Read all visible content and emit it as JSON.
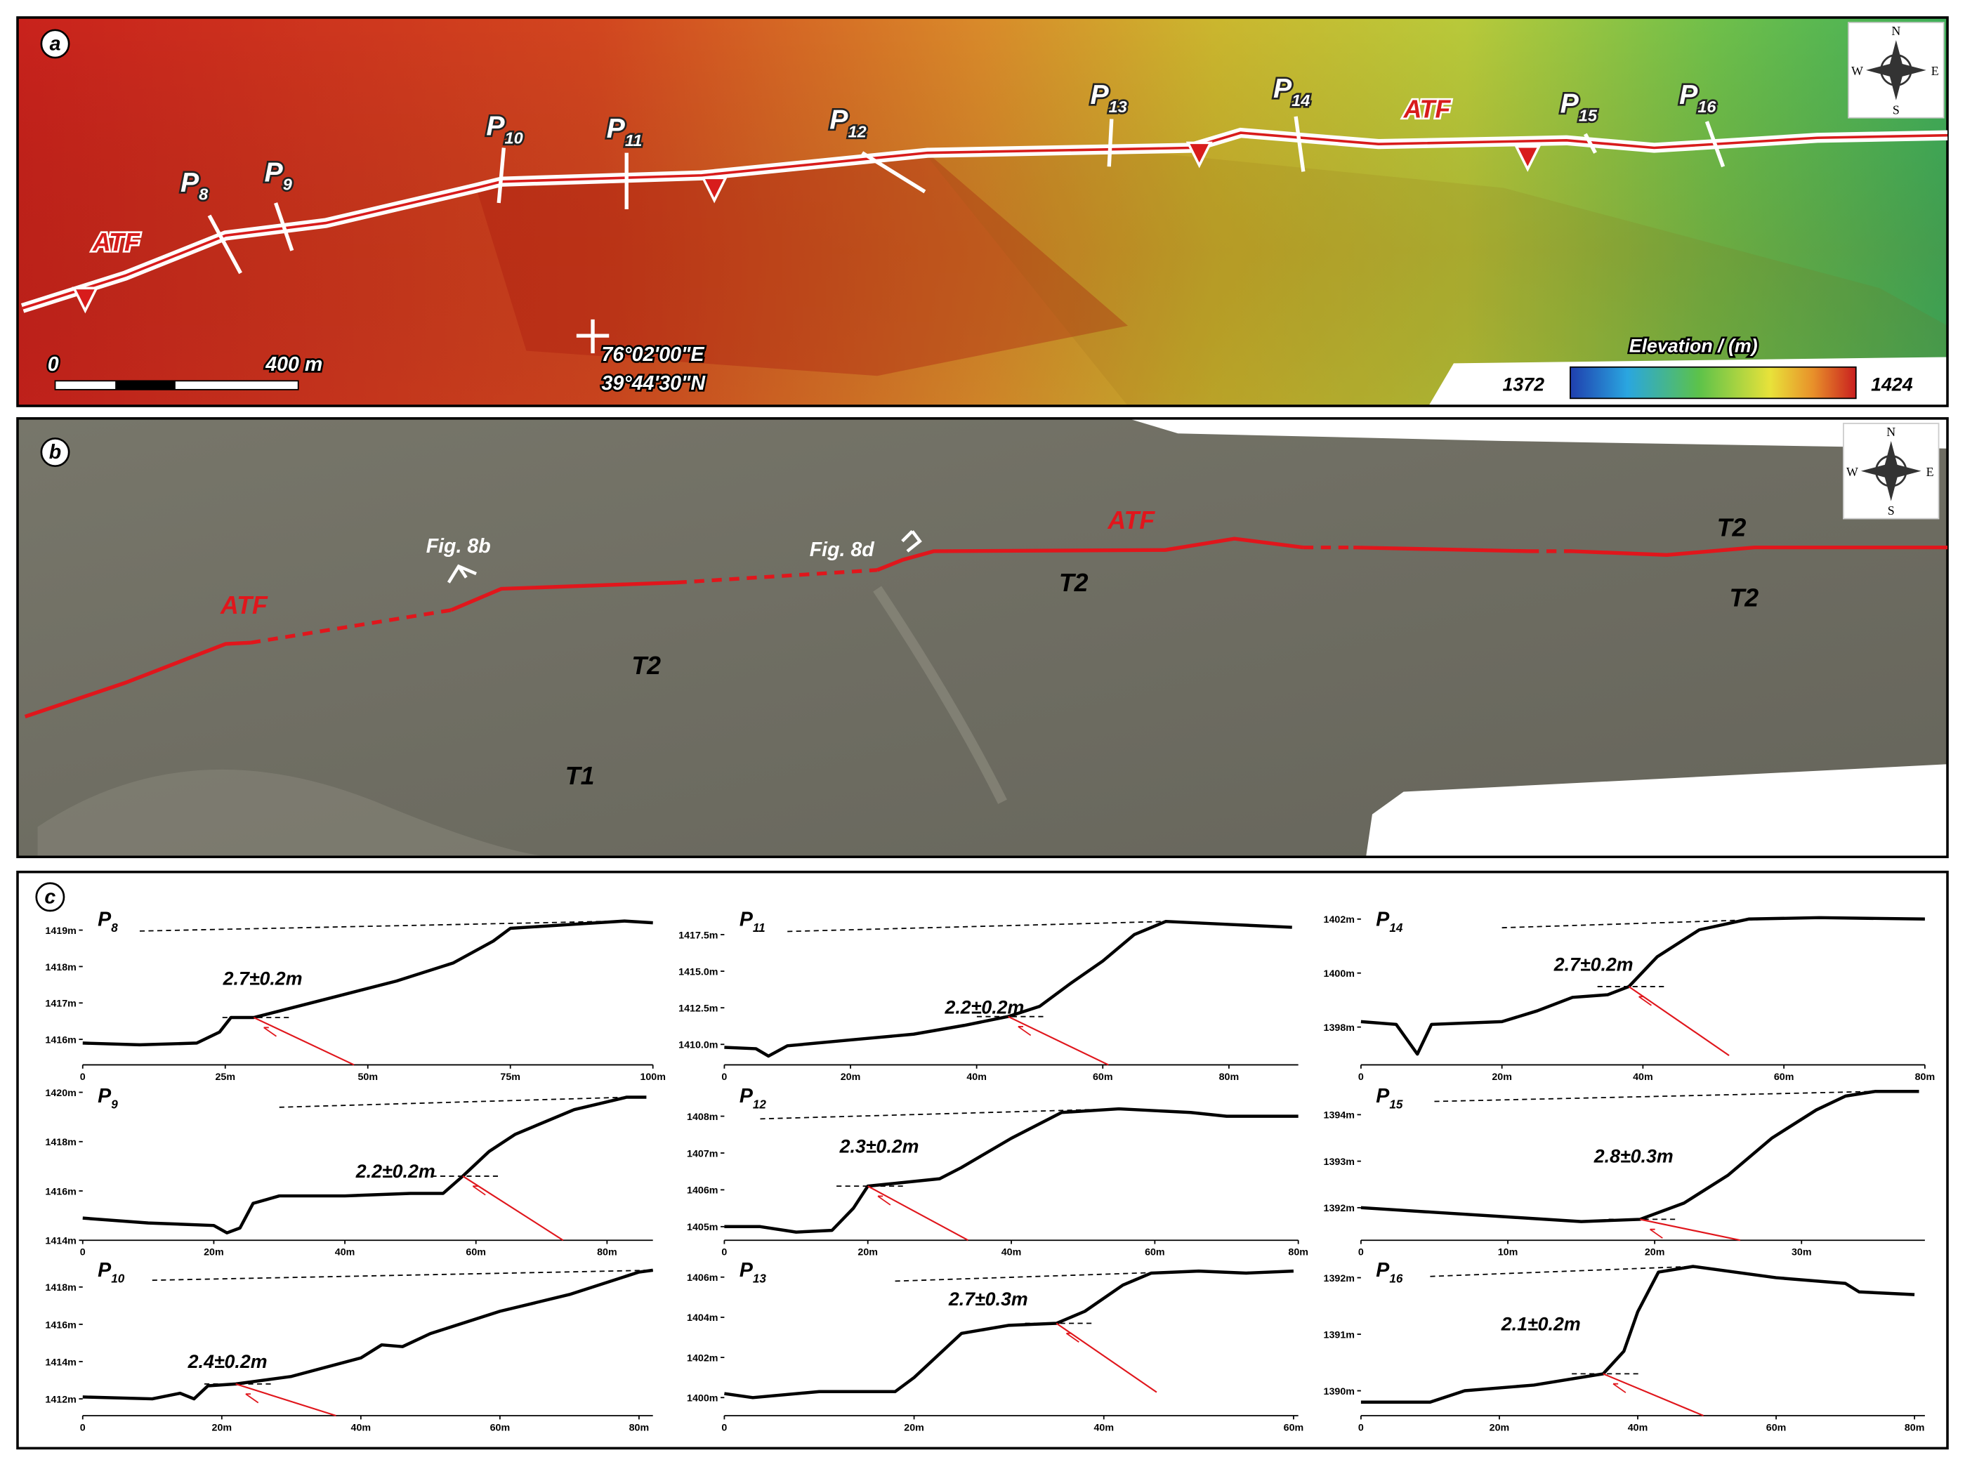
{
  "panel_a": {
    "label": "a",
    "profiles": [
      {
        "letter": "P",
        "sub": "8"
      },
      {
        "letter": "P",
        "sub": "9"
      },
      {
        "letter": "P",
        "sub": "10"
      },
      {
        "letter": "P",
        "sub": "11"
      },
      {
        "letter": "P",
        "sub": "12"
      },
      {
        "letter": "P",
        "sub": "13"
      },
      {
        "letter": "P",
        "sub": "14"
      },
      {
        "letter": "P",
        "sub": "15"
      },
      {
        "letter": "P",
        "sub": "16"
      }
    ],
    "fault_labels": [
      "ATF",
      "ATF"
    ],
    "scale_bar": {
      "start": "0",
      "end": "400 m"
    },
    "coordinates": [
      "76°02'00\"E",
      "39°44'30\"N"
    ],
    "colorbar": {
      "title": "Elevation / (m)",
      "min": 1372,
      "max": 1424
    },
    "compass": [
      "N",
      "S",
      "E",
      "W"
    ]
  },
  "panel_b": {
    "label": "b",
    "fault_label": "ATF",
    "photo_refs": [
      "Fig. 8b",
      "Fig. 8d"
    ],
    "terraces": [
      "T2",
      "T2",
      "T2",
      "T2",
      "T1"
    ],
    "compass": [
      "N",
      "S",
      "E",
      "W"
    ]
  },
  "panel_c": {
    "label": "c"
  },
  "chart_data": [
    {
      "type": "line",
      "title": {
        "letter": "P",
        "sub": "8"
      },
      "annotation": "2.7±0.2m",
      "color": "#000000",
      "x": [
        0,
        10,
        20,
        24,
        26,
        30,
        35,
        45,
        55,
        65,
        72,
        75,
        85,
        95,
        100
      ],
      "values": [
        1415.9,
        1415.85,
        1415.9,
        1416.2,
        1416.6,
        1416.6,
        1416.8,
        1417.2,
        1417.6,
        1418.1,
        1418.7,
        1419.05,
        1419.15,
        1419.25,
        1419.2
      ],
      "xlim": [
        0,
        100
      ],
      "ylim": [
        1415.3,
        1419.6
      ],
      "xticks": [
        0,
        {
          "value": 25,
          "label": "25m"
        },
        {
          "value": 50,
          "label": "50m"
        },
        {
          "value": 75,
          "label": "75m"
        },
        {
          "value": 100,
          "label": "100m"
        }
      ],
      "yticks": [
        {
          "value": 1416,
          "label": "1416m"
        },
        {
          "value": 1417,
          "label": "1417m"
        },
        {
          "value": 1418,
          "label": "1418m"
        },
        {
          "value": 1419,
          "label": "1419m"
        }
      ]
    },
    {
      "type": "line",
      "title": {
        "letter": "P",
        "sub": "9"
      },
      "annotation": "2.2±0.2m",
      "color": "#000000",
      "x": [
        0,
        10,
        20,
        22,
        24,
        26,
        30,
        40,
        50,
        55,
        58,
        62,
        66,
        75,
        83,
        86
      ],
      "values": [
        1414.9,
        1414.7,
        1414.6,
        1414.3,
        1414.5,
        1415.5,
        1415.8,
        1415.8,
        1415.9,
        1415.9,
        1416.6,
        1417.6,
        1418.3,
        1419.3,
        1419.8,
        1419.8
      ],
      "xlim": [
        0,
        87
      ],
      "ylim": [
        1414,
        1420.3
      ],
      "xticks": [
        0,
        {
          "value": 20,
          "label": "20m"
        },
        {
          "value": 40,
          "label": "40m"
        },
        {
          "value": 60,
          "label": "60m"
        },
        {
          "value": 80,
          "label": "80m"
        }
      ],
      "yticks": [
        {
          "value": 1414,
          "label": "1414m"
        },
        {
          "value": 1416,
          "label": "1416m"
        },
        {
          "value": 1418,
          "label": "1418m"
        },
        {
          "value": 1420,
          "label": "1420m"
        }
      ]
    },
    {
      "type": "line",
      "title": {
        "letter": "P",
        "sub": "10"
      },
      "annotation": "2.4±0.2m",
      "color": "#000000",
      "x": [
        0,
        10,
        14,
        16,
        18,
        22,
        30,
        40,
        43,
        46,
        50,
        60,
        70,
        80,
        82
      ],
      "values": [
        1412.1,
        1412,
        1412.3,
        1412,
        1412.7,
        1412.8,
        1413.2,
        1414.2,
        1414.9,
        1414.8,
        1415.5,
        1416.7,
        1417.6,
        1418.8,
        1418.9
      ],
      "xlim": [
        0,
        82
      ],
      "ylim": [
        1411.1,
        1419.5
      ],
      "xticks": [
        0,
        {
          "value": 20,
          "label": "20m"
        },
        {
          "value": 40,
          "label": "40m"
        },
        {
          "value": 60,
          "label": "60m"
        },
        {
          "value": 80,
          "label": "80m"
        }
      ],
      "yticks": [
        {
          "value": 1412,
          "label": "1412m"
        },
        {
          "value": 1414,
          "label": "1414m"
        },
        {
          "value": 1416,
          "label": "1416m"
        },
        {
          "value": 1418,
          "label": "1418m"
        }
      ]
    },
    {
      "type": "line",
      "title": {
        "letter": "P",
        "sub": "11"
      },
      "annotation": "2.2±0.2m",
      "color": "#000000",
      "x": [
        0,
        5,
        7,
        10,
        20,
        30,
        38,
        45,
        50,
        55,
        60,
        65,
        70,
        80,
        90
      ],
      "values": [
        1409.8,
        1409.7,
        1409.2,
        1409.9,
        1410.3,
        1410.7,
        1411.3,
        1411.9,
        1412.6,
        1414.2,
        1415.7,
        1417.5,
        1418.4,
        1418.2,
        1418.0
      ],
      "xlim": [
        0,
        91
      ],
      "ylim": [
        1408.6,
        1419.3
      ],
      "xticks": [
        0,
        {
          "value": 20,
          "label": "20m"
        },
        {
          "value": 40,
          "label": "40m"
        },
        {
          "value": 60,
          "label": "60m"
        },
        {
          "value": 80,
          "label": "80m"
        }
      ],
      "yticks": [
        {
          "value": 1410,
          "label": "1410.0m"
        },
        {
          "value": 1412.5,
          "label": "1412.5m"
        },
        {
          "value": 1415,
          "label": "1415.0m"
        },
        {
          "value": 1417.5,
          "label": "1417.5m"
        }
      ]
    },
    {
      "type": "line",
      "title": {
        "letter": "P",
        "sub": "12"
      },
      "annotation": "2.3±0.2m",
      "color": "#000000",
      "x": [
        0,
        5,
        10,
        15,
        18,
        20,
        30,
        33,
        40,
        47,
        55,
        65,
        70,
        80
      ],
      "values": [
        1405,
        1405.0,
        1404.85,
        1404.9,
        1405.5,
        1406.1,
        1406.3,
        1406.6,
        1407.4,
        1408.1,
        1408.2,
        1408.1,
        1408.0,
        1408.0
      ],
      "xlim": [
        0,
        80
      ],
      "ylim": [
        1404.63,
        1408.85
      ],
      "xticks": [
        0,
        {
          "value": 20,
          "label": "20m"
        },
        {
          "value": 40,
          "label": "40m"
        },
        {
          "value": 60,
          "label": "60m"
        },
        {
          "value": 80,
          "label": "80m"
        }
      ],
      "yticks": [
        {
          "value": 1405,
          "label": "1405m"
        },
        {
          "value": 1406,
          "label": "1406m"
        },
        {
          "value": 1407,
          "label": "1407m"
        },
        {
          "value": 1408,
          "label": "1408m"
        }
      ]
    },
    {
      "type": "line",
      "title": {
        "letter": "P",
        "sub": "13"
      },
      "annotation": "2.7±0.3m",
      "color": "#000000",
      "x": [
        0,
        3,
        10,
        18,
        20,
        25,
        30,
        35,
        38,
        42,
        45,
        50,
        55,
        60
      ],
      "values": [
        1400.2,
        1400,
        1400.3,
        1400.3,
        1401,
        1403.2,
        1403.6,
        1403.7,
        1404.3,
        1405.6,
        1406.2,
        1406.3,
        1406.2,
        1406.3
      ],
      "xlim": [
        0,
        60.5
      ],
      "ylim": [
        1399.1,
        1406.9
      ],
      "xticks": [
        0,
        {
          "value": 20,
          "label": "20m"
        },
        {
          "value": 40,
          "label": "40m"
        },
        {
          "value": 60,
          "label": "60m"
        }
      ],
      "yticks": [
        {
          "value": 1400,
          "label": "1400m"
        },
        {
          "value": 1402,
          "label": "1402m"
        },
        {
          "value": 1404,
          "label": "1404m"
        },
        {
          "value": 1406,
          "label": "1406m"
        }
      ]
    },
    {
      "type": "line",
      "title": {
        "letter": "P",
        "sub": "14"
      },
      "annotation": "2.7±0.2m",
      "color": "#000000",
      "x": [
        0,
        5,
        8,
        10,
        20,
        25,
        30,
        35,
        38,
        42,
        48,
        55,
        65,
        80
      ],
      "values": [
        1398.2,
        1398.1,
        1397.0,
        1398.1,
        1398.2,
        1398.6,
        1399.1,
        1399.2,
        1399.5,
        1400.6,
        1401.6,
        1402.0,
        1402.05,
        1402
      ],
      "xlim": [
        0,
        80
      ],
      "ylim": [
        1396.6,
        1402.4
      ],
      "xticks": [
        0,
        {
          "value": 20,
          "label": "20m"
        },
        {
          "value": 40,
          "label": "40m"
        },
        {
          "value": 60,
          "label": "60m"
        },
        {
          "value": 80,
          "label": "80m"
        }
      ],
      "yticks": [
        {
          "value": 1398,
          "label": "1398m"
        },
        {
          "value": 1400,
          "label": "1400m"
        },
        {
          "value": 1402,
          "label": "1402m"
        }
      ]
    },
    {
      "type": "line",
      "title": {
        "letter": "P",
        "sub": "15"
      },
      "annotation": "2.8±0.3m",
      "color": "#000000",
      "x": [
        0,
        5,
        10,
        15,
        19,
        22,
        25,
        28,
        31,
        33,
        35,
        38
      ],
      "values": [
        1392,
        1391.9,
        1391.8,
        1391.7,
        1391.75,
        1392.1,
        1392.7,
        1393.5,
        1394.1,
        1394.4,
        1394.5,
        1394.5
      ],
      "xlim": [
        0,
        38.4
      ],
      "ylim": [
        1391.3,
        1394.64
      ],
      "xticks": [
        0,
        {
          "value": 10,
          "label": "10m"
        },
        {
          "value": 20,
          "label": "20m"
        },
        {
          "value": 30,
          "label": "30m"
        }
      ],
      "yticks": [
        {
          "value": 1392,
          "label": "1392m"
        },
        {
          "value": 1393,
          "label": "1393m"
        },
        {
          "value": 1394,
          "label": "1394m"
        }
      ]
    },
    {
      "type": "line",
      "title": {
        "letter": "P",
        "sub": "16"
      },
      "annotation": "2.1±0.2m",
      "color": "#000000",
      "x": [
        0,
        10,
        15,
        25,
        30,
        35,
        38,
        40,
        43,
        48,
        60,
        70,
        72,
        80
      ],
      "values": [
        1389.8,
        1389.8,
        1390.0,
        1390.1,
        1390.2,
        1390.3,
        1390.7,
        1391.4,
        1392.1,
        1392.2,
        1392.0,
        1391.9,
        1391.75,
        1391.7
      ],
      "xlim": [
        0,
        81.5
      ],
      "ylim": [
        1389.56,
        1392.33
      ],
      "xticks": [
        0,
        {
          "value": 20,
          "label": "20m"
        },
        {
          "value": 40,
          "label": "40m"
        },
        {
          "value": 60,
          "label": "60m"
        },
        {
          "value": 80,
          "label": "80m"
        }
      ],
      "yticks": [
        {
          "value": 1390,
          "label": "1390m"
        },
        {
          "value": 1391,
          "label": "1391m"
        },
        {
          "value": 1392,
          "label": "1392m"
        }
      ]
    }
  ]
}
